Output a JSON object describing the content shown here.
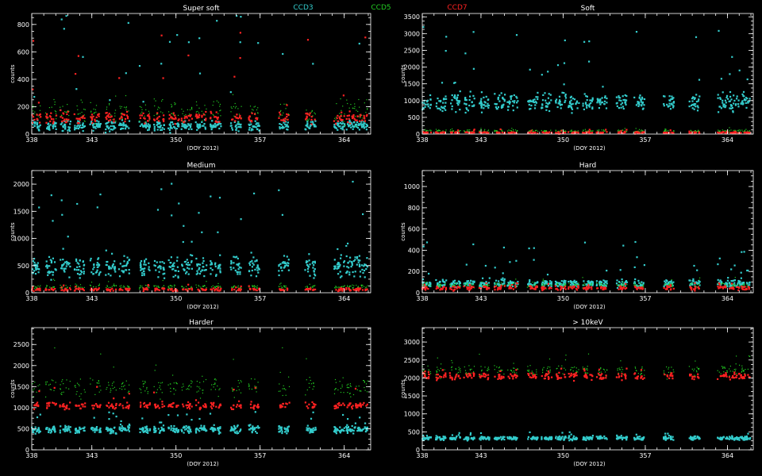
{
  "legend": [
    {
      "name": "CCD3",
      "color": "#33cccc"
    },
    {
      "name": "CCD5",
      "color": "#22cc22"
    },
    {
      "name": "CCD7",
      "color": "#ff2222"
    }
  ],
  "chart_data": [
    {
      "type": "scatter",
      "title": "Super soft",
      "xlabel": "(DOY 2012)",
      "ylabel": "counts",
      "xlim": [
        338,
        366.2
      ],
      "ylim": [
        0,
        880
      ],
      "xticks": [
        338,
        343,
        350,
        357,
        364
      ],
      "yticks": [
        0,
        200,
        400,
        600,
        800
      ],
      "clusters": [
        338.3,
        339.6,
        340.8,
        342.0,
        343.3,
        344.6,
        345.7,
        347.4,
        348.6,
        349.8,
        350.9,
        352.1,
        353.3,
        355.0,
        356.5,
        359.0,
        361.2,
        363.6,
        364.6,
        365.5
      ],
      "series": [
        {
          "name": "CCD3",
          "center": 60,
          "spread": 55,
          "peak": 900
        },
        {
          "name": "CCD5",
          "center": 160,
          "spread": 120,
          "peak": 300
        },
        {
          "name": "CCD7",
          "center": 120,
          "spread": 60,
          "peak": 750
        }
      ]
    },
    {
      "type": "scatter",
      "title": "Soft",
      "xlabel": "(DOY 2012)",
      "ylabel": "counts",
      "xlim": [
        338,
        366.2
      ],
      "ylim": [
        0,
        3600
      ],
      "xticks": [
        338,
        343,
        350,
        357,
        364
      ],
      "yticks": [
        0,
        500,
        1000,
        1500,
        2000,
        2500,
        3000,
        3500
      ],
      "clusters": [
        338.3,
        339.6,
        340.8,
        342.0,
        343.3,
        344.6,
        345.7,
        347.4,
        348.6,
        349.8,
        350.9,
        352.1,
        353.3,
        355.0,
        356.5,
        359.0,
        361.2,
        363.6,
        364.6,
        365.5
      ],
      "series": [
        {
          "name": "CCD3",
          "center": 950,
          "spread": 400,
          "peak": 3200
        },
        {
          "name": "CCD5",
          "center": 90,
          "spread": 60,
          "peak": 200
        },
        {
          "name": "CCD7",
          "center": 40,
          "spread": 40,
          "peak": 150
        }
      ]
    },
    {
      "type": "scatter",
      "title": "Medium",
      "xlabel": "(DOY 2012)",
      "ylabel": "counts",
      "xlim": [
        338,
        366.2
      ],
      "ylim": [
        0,
        2250
      ],
      "xticks": [
        338,
        343,
        350,
        357,
        364
      ],
      "yticks": [
        0,
        500,
        1000,
        1500,
        2000
      ],
      "clusters": [
        338.3,
        339.6,
        340.8,
        342.0,
        343.3,
        344.6,
        345.7,
        347.4,
        348.6,
        349.8,
        350.9,
        352.1,
        353.3,
        355.0,
        356.5,
        359.0,
        361.2,
        363.6,
        364.6,
        365.5
      ],
      "series": [
        {
          "name": "CCD3",
          "center": 480,
          "spread": 280,
          "peak": 2050
        },
        {
          "name": "CCD5",
          "center": 110,
          "spread": 60,
          "peak": 250
        },
        {
          "name": "CCD7",
          "center": 60,
          "spread": 40,
          "peak": 150
        }
      ]
    },
    {
      "type": "scatter",
      "title": "Hard",
      "xlabel": "(DOY 2012)",
      "ylabel": "counts",
      "xlim": [
        338,
        366.2
      ],
      "ylim": [
        0,
        1150
      ],
      "xticks": [
        338,
        343,
        350,
        357,
        364
      ],
      "yticks": [
        0,
        200,
        400,
        600,
        800,
        1000
      ],
      "clusters": [
        338.3,
        339.6,
        340.8,
        342.0,
        343.3,
        344.6,
        345.7,
        347.4,
        348.6,
        349.8,
        350.9,
        352.1,
        353.3,
        355.0,
        356.5,
        359.0,
        361.2,
        363.6,
        364.6,
        365.5
      ],
      "series": [
        {
          "name": "CCD3",
          "center": 85,
          "spread": 55,
          "peak": 500
        },
        {
          "name": "CCD5",
          "center": 70,
          "spread": 40,
          "peak": 150
        },
        {
          "name": "CCD7",
          "center": 45,
          "spread": 30,
          "peak": 100
        }
      ]
    },
    {
      "type": "scatter",
      "title": "Harder",
      "xlabel": "(DOY 2012)",
      "ylabel": "counts",
      "xlim": [
        338,
        366.2
      ],
      "ylim": [
        0,
        2900
      ],
      "xticks": [
        338,
        343,
        350,
        357,
        364
      ],
      "yticks": [
        0,
        500,
        1000,
        1500,
        2000,
        2500
      ],
      "clusters": [
        338.3,
        339.6,
        340.8,
        342.0,
        343.3,
        344.6,
        345.7,
        347.4,
        348.6,
        349.8,
        350.9,
        352.1,
        353.3,
        355.0,
        356.5,
        359.0,
        361.2,
        363.6,
        364.6,
        365.5
      ],
      "series": [
        {
          "name": "CCD3",
          "center": 480,
          "spread": 130,
          "peak": 900
        },
        {
          "name": "CCD5",
          "center": 1500,
          "spread": 350,
          "peak": 2600
        },
        {
          "name": "CCD7",
          "center": 1050,
          "spread": 120,
          "peak": 1500
        }
      ]
    },
    {
      "type": "scatter",
      "title": "> 10keV",
      "xlabel": "(DOY 2012)",
      "ylabel": "counts",
      "xlim": [
        338,
        366.2
      ],
      "ylim": [
        0,
        3400
      ],
      "xticks": [
        338,
        343,
        350,
        357,
        364
      ],
      "yticks": [
        0,
        500,
        1000,
        1500,
        2000,
        2500,
        3000
      ],
      "clusters": [
        338.3,
        339.6,
        340.8,
        342.0,
        343.3,
        344.6,
        345.7,
        347.4,
        348.6,
        349.8,
        350.9,
        352.1,
        353.3,
        355.0,
        356.5,
        359.0,
        361.2,
        363.6,
        364.6,
        365.5
      ],
      "series": [
        {
          "name": "CCD3",
          "center": 320,
          "spread": 80,
          "peak": 500
        },
        {
          "name": "CCD5",
          "center": 2200,
          "spread": 250,
          "peak": 2700
        },
        {
          "name": "CCD7",
          "center": 2050,
          "spread": 150,
          "peak": 2300
        }
      ]
    }
  ]
}
